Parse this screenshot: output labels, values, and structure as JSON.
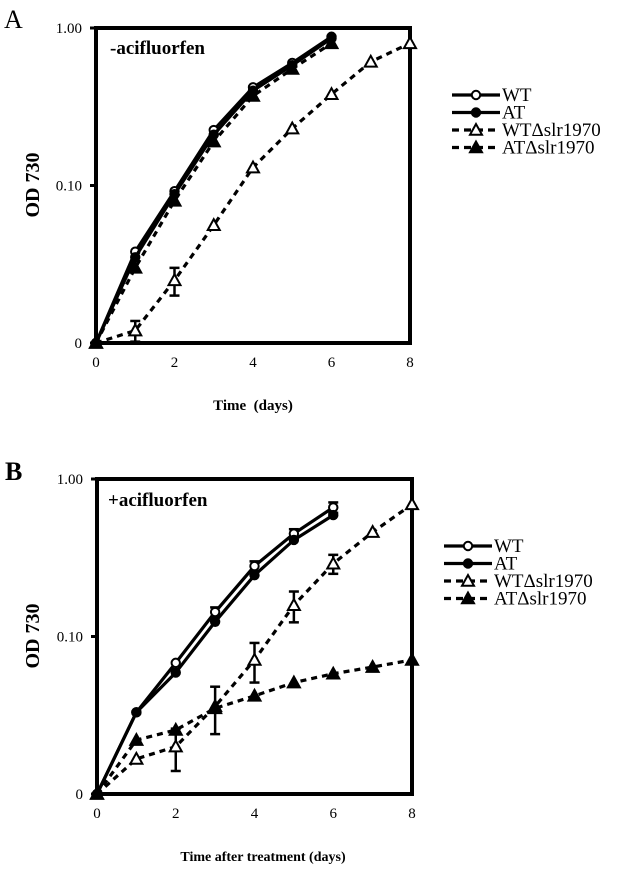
{
  "chart_data": [
    {
      "type": "line",
      "panel_label": "A",
      "annotation": "-acifluorfen",
      "xlabel": "Time  (days)",
      "ylabel": "OD 730",
      "yscale": "log",
      "xlim": [
        0,
        8
      ],
      "ylim": [
        0.01,
        1.0
      ],
      "x_ticks": [
        "0",
        "2",
        "4",
        "6",
        "8"
      ],
      "y_ticks": [
        {
          "value": 0.01,
          "label": "0"
        },
        {
          "value": 0.1,
          "label": "0.10"
        },
        {
          "value": 1.0,
          "label": "1.00"
        }
      ],
      "grid": false,
      "legend_position": "right",
      "series": [
        {
          "name": "WT",
          "marker": "open-circle",
          "line": "solid",
          "x": [
            0,
            1,
            2,
            3,
            4,
            5,
            6
          ],
          "y": [
            0.01,
            0.038,
            0.092,
            0.225,
            0.42,
            0.6,
            0.88
          ]
        },
        {
          "name": "AT",
          "marker": "filled-circle",
          "line": "solid",
          "x": [
            0,
            1,
            2,
            3,
            4,
            5,
            6
          ],
          "y": [
            0.01,
            0.035,
            0.088,
            0.21,
            0.4,
            0.58,
            0.86
          ]
        },
        {
          "name": "WTΔslr1970",
          "marker": "open-triangle",
          "line": "dashed",
          "x": [
            0,
            1,
            2,
            3,
            4,
            5,
            6,
            7,
            8
          ],
          "y": [
            0.01,
            0.012,
            0.025,
            0.056,
            0.13,
            0.23,
            0.38,
            0.61,
            0.8
          ],
          "err": [
            0,
            0.0018,
            0.005,
            0,
            0,
            0,
            0,
            0,
            0
          ]
        },
        {
          "name": "ATΔslr1970",
          "marker": "filled-triangle",
          "line": "dashed",
          "x": [
            0,
            1,
            2,
            3,
            4,
            5,
            6
          ],
          "y": [
            0.01,
            0.03,
            0.08,
            0.19,
            0.37,
            0.55,
            0.8
          ]
        }
      ]
    },
    {
      "type": "line",
      "panel_label": "B",
      "annotation": "+acifluorfen",
      "xlabel": "Time after treatment (days)",
      "ylabel": "OD 730",
      "yscale": "log",
      "xlim": [
        0,
        8
      ],
      "ylim": [
        0.01,
        1.0
      ],
      "x_ticks": [
        "0",
        "2",
        "4",
        "6",
        "8"
      ],
      "y_ticks": [
        {
          "value": 0.01,
          "label": "0"
        },
        {
          "value": 0.1,
          "label": "0.10"
        },
        {
          "value": 1.0,
          "label": "1.00"
        }
      ],
      "grid": false,
      "legend_position": "right",
      "series": [
        {
          "name": "WT",
          "marker": "open-circle",
          "line": "solid",
          "x": [
            0,
            1,
            2,
            3,
            4,
            5,
            6
          ],
          "y": [
            0.01,
            0.033,
            0.068,
            0.143,
            0.28,
            0.45,
            0.66
          ],
          "err": [
            0,
            0,
            0,
            0.01,
            0.02,
            0.03,
            0.05
          ]
        },
        {
          "name": "AT",
          "marker": "filled-circle",
          "line": "solid",
          "x": [
            0,
            1,
            2,
            3,
            4,
            5,
            6
          ],
          "y": [
            0.01,
            0.033,
            0.059,
            0.124,
            0.245,
            0.41,
            0.59
          ]
        },
        {
          "name": "WTΔslr1970",
          "marker": "open-triangle",
          "line": "dashed",
          "x": [
            0,
            1,
            2,
            3,
            4,
            5,
            6,
            7,
            8
          ],
          "y": [
            0.01,
            0.0167,
            0.02,
            0.036,
            0.071,
            0.158,
            0.29,
            0.46,
            0.69
          ],
          "err": [
            0,
            0,
            0.006,
            0.012,
            0.02,
            0.035,
            0.04,
            0,
            0
          ]
        },
        {
          "name": "ATΔslr1970",
          "marker": "filled-triangle",
          "line": "dashed",
          "x": [
            0,
            1,
            2,
            3,
            4,
            5,
            6,
            7,
            8
          ],
          "y": [
            0.01,
            0.022,
            0.0255,
            0.035,
            0.042,
            0.051,
            0.058,
            0.064,
            0.071
          ]
        }
      ]
    }
  ]
}
